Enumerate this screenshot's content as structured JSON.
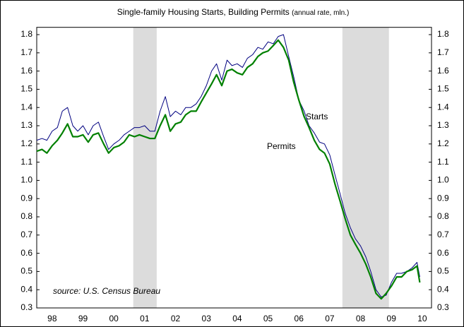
{
  "chart_data": {
    "type": "line",
    "title": "Single-family Housing Starts, Building Permits",
    "subtitle": "(annual rate, mln.)",
    "annotations": [
      "Starts",
      "Permits",
      "source: U.S. Census Bureau"
    ],
    "x": [
      1998.0,
      1998.17,
      1998.33,
      1998.5,
      1998.67,
      1998.83,
      1999.0,
      1999.17,
      1999.33,
      1999.5,
      1999.67,
      1999.83,
      2000.0,
      2000.17,
      2000.33,
      2000.5,
      2000.67,
      2000.83,
      2001.0,
      2001.17,
      2001.33,
      2001.5,
      2001.67,
      2001.83,
      2002.0,
      2002.17,
      2002.33,
      2002.5,
      2002.67,
      2002.83,
      2003.0,
      2003.17,
      2003.33,
      2003.5,
      2003.67,
      2003.83,
      2004.0,
      2004.17,
      2004.33,
      2004.5,
      2004.67,
      2004.83,
      2005.0,
      2005.17,
      2005.33,
      2005.5,
      2005.67,
      2005.83,
      2006.0,
      2006.17,
      2006.33,
      2006.5,
      2006.67,
      2006.83,
      2007.0,
      2007.17,
      2007.33,
      2007.5,
      2007.67,
      2007.83,
      2008.0,
      2008.17,
      2008.33,
      2008.5,
      2008.67,
      2008.83,
      2009.0,
      2009.17,
      2009.33,
      2009.5,
      2009.67,
      2009.83,
      2010.0,
      2010.17,
      2010.33,
      2010.42
    ],
    "series": [
      {
        "name": "Starts",
        "color": "#000080",
        "values": [
          1.22,
          1.23,
          1.22,
          1.27,
          1.29,
          1.38,
          1.4,
          1.3,
          1.27,
          1.3,
          1.25,
          1.3,
          1.32,
          1.24,
          1.17,
          1.2,
          1.22,
          1.25,
          1.27,
          1.29,
          1.29,
          1.3,
          1.27,
          1.27,
          1.38,
          1.46,
          1.35,
          1.38,
          1.36,
          1.4,
          1.4,
          1.42,
          1.46,
          1.52,
          1.6,
          1.64,
          1.55,
          1.66,
          1.63,
          1.64,
          1.62,
          1.67,
          1.69,
          1.73,
          1.72,
          1.76,
          1.75,
          1.79,
          1.8,
          1.68,
          1.57,
          1.44,
          1.38,
          1.3,
          1.26,
          1.21,
          1.2,
          1.14,
          1.03,
          0.93,
          0.82,
          0.74,
          0.68,
          0.64,
          0.58,
          0.5,
          0.4,
          0.36,
          0.37,
          0.44,
          0.49,
          0.49,
          0.5,
          0.52,
          0.55,
          0.47
        ]
      },
      {
        "name": "Permits",
        "color": "#008000",
        "values": [
          1.16,
          1.17,
          1.15,
          1.19,
          1.22,
          1.26,
          1.31,
          1.24,
          1.24,
          1.25,
          1.21,
          1.25,
          1.26,
          1.2,
          1.15,
          1.18,
          1.19,
          1.21,
          1.25,
          1.24,
          1.25,
          1.24,
          1.23,
          1.23,
          1.3,
          1.36,
          1.27,
          1.31,
          1.32,
          1.36,
          1.38,
          1.38,
          1.43,
          1.48,
          1.53,
          1.58,
          1.52,
          1.6,
          1.61,
          1.59,
          1.58,
          1.62,
          1.64,
          1.68,
          1.7,
          1.71,
          1.74,
          1.77,
          1.73,
          1.66,
          1.54,
          1.44,
          1.35,
          1.29,
          1.22,
          1.17,
          1.15,
          1.09,
          0.98,
          0.89,
          0.79,
          0.7,
          0.65,
          0.6,
          0.54,
          0.47,
          0.38,
          0.35,
          0.38,
          0.42,
          0.47,
          0.47,
          0.5,
          0.51,
          0.53,
          0.44
        ]
      }
    ],
    "recessions": [
      [
        2001.13,
        2001.89
      ],
      [
        2007.91,
        2009.42
      ]
    ],
    "recession_color": "#dcdcdc",
    "xlim": [
      1998.0,
      2010.8
    ],
    "xticks": [
      {
        "value": 1998.5,
        "label": "98"
      },
      {
        "value": 1999.5,
        "label": "99"
      },
      {
        "value": 2000.5,
        "label": "00"
      },
      {
        "value": 2001.5,
        "label": "01"
      },
      {
        "value": 2002.5,
        "label": "02"
      },
      {
        "value": 2003.5,
        "label": "03"
      },
      {
        "value": 2004.5,
        "label": "04"
      },
      {
        "value": 2005.5,
        "label": "05"
      },
      {
        "value": 2006.5,
        "label": "06"
      },
      {
        "value": 2007.5,
        "label": "07"
      },
      {
        "value": 2008.5,
        "label": "08"
      },
      {
        "value": 2009.5,
        "label": "09"
      },
      {
        "value": 2010.5,
        "label": "10"
      }
    ],
    "ylim": [
      0.3,
      1.84
    ],
    "yticks": [
      0.3,
      0.4,
      0.5,
      0.6,
      0.7,
      0.8,
      0.9,
      {
        "value": 1,
        "label": "1.0"
      },
      1.1,
      1.2,
      1.3,
      1.4,
      1.5,
      1.6,
      1.7,
      1.8
    ],
    "y2lim": [
      0.3,
      1.84
    ],
    "y2ticks": [
      0.3,
      0.4,
      0.5,
      0.6,
      0.7,
      0.8,
      0.9,
      {
        "value": 1,
        "label": "1.0"
      },
      1.1,
      1.2,
      1.3,
      1.4,
      1.5,
      1.6,
      1.7,
      1.8
    ]
  }
}
